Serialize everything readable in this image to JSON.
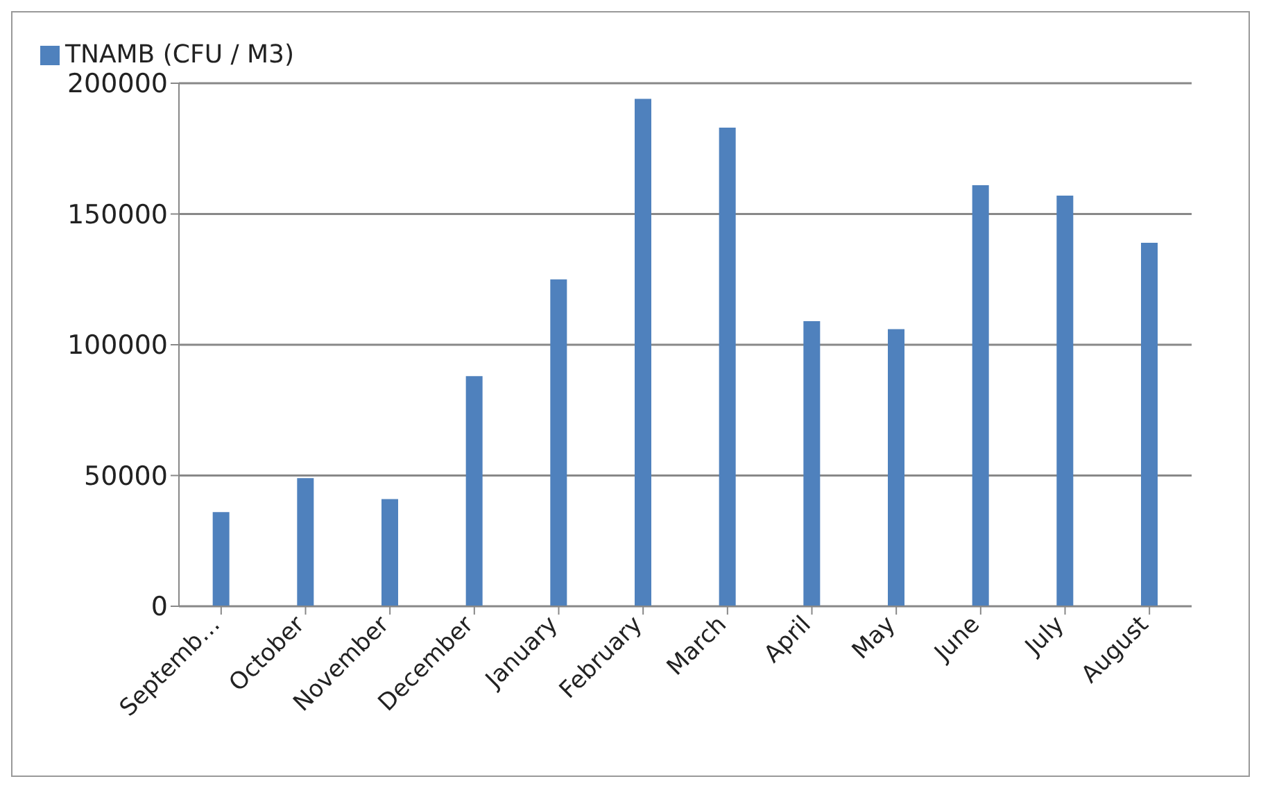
{
  "chart_data": {
    "type": "bar",
    "categories": [
      "Septemb…",
      "October",
      "November",
      "December",
      "January",
      "February",
      "March",
      "April",
      "May",
      "June",
      "July",
      "August"
    ],
    "series": [
      {
        "name": "TNAMB (CFU / M3)",
        "color": "#4f81bd",
        "values": [
          36000,
          49000,
          41000,
          88000,
          125000,
          194000,
          183000,
          109000,
          106000,
          161000,
          157000,
          139000
        ]
      }
    ],
    "ylim": [
      0,
      200000
    ],
    "yticks": [
      0,
      50000,
      100000,
      150000,
      200000
    ],
    "grid": "y",
    "legend": "top left"
  }
}
